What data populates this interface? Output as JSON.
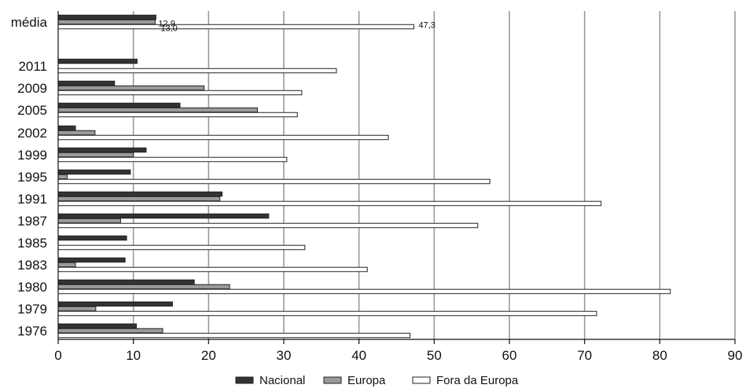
{
  "chart_data": {
    "type": "bar",
    "orientation": "horizontal",
    "categories": [
      "média",
      "2011",
      "2009",
      "2005",
      "2002",
      "1999",
      "1995",
      "1991",
      "1987",
      "1985",
      "1983",
      "1980",
      "1979",
      "1976"
    ],
    "series": [
      {
        "name": "Nacional",
        "color": "#333333",
        "values": [
          13.0,
          10.5,
          7.5,
          16.2,
          2.3,
          11.7,
          9.6,
          21.8,
          28.0,
          9.1,
          8.9,
          18.1,
          15.2,
          10.4
        ]
      },
      {
        "name": "Europa",
        "color": "#9a9a9a",
        "values": [
          12.9,
          0.0,
          19.4,
          26.5,
          4.9,
          10.0,
          1.2,
          21.5,
          8.3,
          0.0,
          2.3,
          22.8,
          5.0,
          13.9
        ]
      },
      {
        "name": "Fora da Europa",
        "color": "#ffffff",
        "values": [
          47.3,
          37.0,
          32.4,
          31.8,
          43.9,
          30.4,
          57.4,
          72.2,
          55.8,
          32.8,
          41.1,
          81.4,
          71.6,
          46.8
        ]
      }
    ],
    "data_labels": [
      {
        "category": "média",
        "series": "Fora da Europa",
        "text": "47,3"
      },
      {
        "category": "média",
        "series": "Europa",
        "text": "12,9"
      },
      {
        "category": "média",
        "series": "Nacional",
        "text": "13,0"
      }
    ],
    "x_ticks": [
      "0",
      "10",
      "20",
      "30",
      "40",
      "50",
      "60",
      "70",
      "80",
      "90"
    ],
    "xlim": [
      0,
      90
    ],
    "grid": true,
    "legend_position": "bottom"
  }
}
